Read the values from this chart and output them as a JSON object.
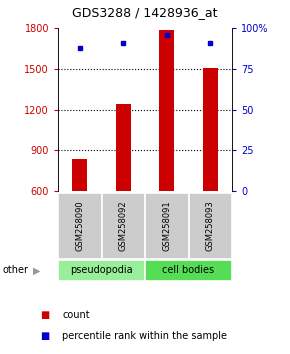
{
  "title": "GDS3288 / 1428936_at",
  "samples": [
    "GSM258090",
    "GSM258092",
    "GSM258091",
    "GSM258093"
  ],
  "counts": [
    840,
    1240,
    1790,
    1510
  ],
  "percentiles": [
    88,
    91,
    96,
    91
  ],
  "ylim_left": [
    600,
    1800
  ],
  "ylim_right": [
    0,
    100
  ],
  "yticks_left": [
    600,
    900,
    1200,
    1500,
    1800
  ],
  "yticks_right": [
    0,
    25,
    50,
    75,
    100
  ],
  "bar_color": "#cc0000",
  "dot_color": "#0000cc",
  "bar_bottom": 600,
  "groups": [
    {
      "label": "pseudopodia",
      "color": "#99ee99"
    },
    {
      "label": "cell bodies",
      "color": "#55dd55"
    }
  ],
  "group_label_other": "other",
  "legend_count_label": "count",
  "legend_pct_label": "percentile rank within the sample",
  "title_fontsize": 9,
  "tick_fontsize": 7,
  "label_fontsize": 7
}
